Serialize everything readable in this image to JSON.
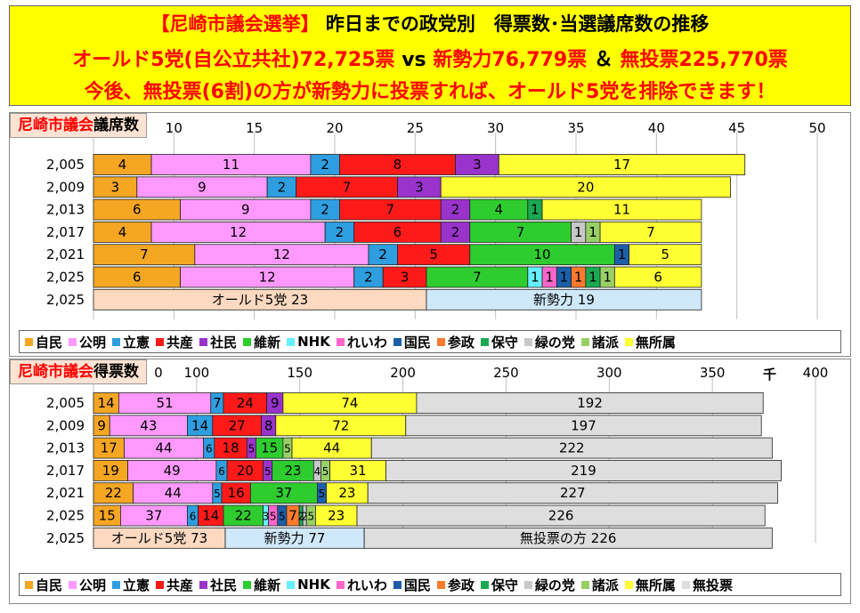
{
  "header": {
    "line1_prefix": "【尼崎市議会選挙】",
    "line1_rest": "昨日までの政党別　得票数･当選議席数の推移",
    "line2_a": "オールド5党(自公立共社)72,725票",
    "line2_vs": " vs ",
    "line2_b": "新勢力76,779票",
    "line2_and": " ＆ ",
    "line2_c": "無投票225,770票",
    "line3": "今後、無投票(6割)の方が新勢力に投票すれば、オールド5党を排除できます！"
  },
  "colors": {
    "自民": "#f5a623",
    "公明": "#ff99ff",
    "立憲": "#2e9ee0",
    "共産": "#ff1a1a",
    "社民": "#9933cc",
    "維新": "#2ecc2e",
    "NHK": "#66f0ff",
    "れいわ": "#ff66cc",
    "国民": "#1c5fa8",
    "参政": "#ff7a2e",
    "保守": "#1aa852",
    "緑の党": "#c8c8c8",
    "諸派": "#99d066",
    "無所属": "#ffff33",
    "無投票": "#dedede",
    "old5": "#fcd9c0",
    "new": "#cfe8fa"
  },
  "chart_data": [
    {
      "type": "bar",
      "orientation": "horizontal",
      "stacked": true,
      "title_red": "尼崎市議会",
      "title_black": "議席数",
      "xlim": [
        0,
        50
      ],
      "x_ticks": [
        "",
        "10",
        "15",
        "20",
        "25",
        "30",
        "35",
        "40",
        "45",
        "50"
      ],
      "categories": [
        "2,005",
        "2,009",
        "2,013",
        "2,017",
        "2,021",
        "2,025",
        "2,025"
      ],
      "rows": [
        [
          [
            "自民",
            4
          ],
          [
            "公明",
            11
          ],
          [
            "立憲",
            2
          ],
          [
            "共産",
            8
          ],
          [
            "社民",
            3
          ],
          [
            "無所属",
            17
          ]
        ],
        [
          [
            "自民",
            3
          ],
          [
            "公明",
            9
          ],
          [
            "立憲",
            2
          ],
          [
            "共産",
            7
          ],
          [
            "社民",
            3
          ],
          [
            "無所属",
            20
          ]
        ],
        [
          [
            "自民",
            6
          ],
          [
            "公明",
            9
          ],
          [
            "立憲",
            2
          ],
          [
            "共産",
            7
          ],
          [
            "社民",
            2
          ],
          [
            "維新",
            4
          ],
          [
            "保守",
            1
          ],
          [
            "無所属",
            11
          ]
        ],
        [
          [
            "自民",
            4
          ],
          [
            "公明",
            12
          ],
          [
            "立憲",
            2
          ],
          [
            "共産",
            6
          ],
          [
            "社民",
            2
          ],
          [
            "維新",
            7
          ],
          [
            "緑の党",
            1
          ],
          [
            "諸派",
            1
          ],
          [
            "無所属",
            7
          ]
        ],
        [
          [
            "自民",
            7
          ],
          [
            "公明",
            12
          ],
          [
            "立憲",
            2
          ],
          [
            "共産",
            5
          ],
          [
            "維新",
            10
          ],
          [
            "国民",
            1
          ],
          [
            "無所属",
            5
          ]
        ],
        [
          [
            "自民",
            6
          ],
          [
            "公明",
            12
          ],
          [
            "立憲",
            2
          ],
          [
            "共産",
            3
          ],
          [
            "維新",
            7
          ],
          [
            "NHK",
            1
          ],
          [
            "れいわ",
            1
          ],
          [
            "国民",
            1
          ],
          [
            "参政",
            1
          ],
          [
            "保守",
            1
          ],
          [
            "諸派",
            1
          ],
          [
            "無所属",
            6
          ]
        ],
        [
          [
            "old5",
            23,
            "オールド5党",
            "23"
          ],
          [
            "new",
            19,
            "新勢力",
            "19"
          ]
        ]
      ],
      "legend": [
        "自民",
        "公明",
        "立憲",
        "共産",
        "社民",
        "維新",
        "NHK",
        "れいわ",
        "国民",
        "参政",
        "保守",
        "緑の党",
        "諸派",
        "無所属"
      ]
    },
    {
      "type": "bar",
      "orientation": "horizontal",
      "stacked": true,
      "title_red": "尼崎市議会",
      "title_black": "得票数",
      "unit": "千",
      "xlim": [
        0,
        400
      ],
      "x_ticks": [
        "",
        "100",
        "150",
        "200",
        "250",
        "300",
        "350",
        "400"
      ],
      "x_partial_tick": "0",
      "categories": [
        "2,005",
        "2,009",
        "2,013",
        "2,017",
        "2,021",
        "2,025",
        "2,025"
      ],
      "rows": [
        [
          [
            "自民",
            14
          ],
          [
            "公明",
            51
          ],
          [
            "立憲",
            7
          ],
          [
            "共産",
            24
          ],
          [
            "社民",
            9
          ],
          [
            "無所属",
            74
          ],
          [
            "無投票",
            192
          ]
        ],
        [
          [
            "自民",
            9
          ],
          [
            "公明",
            43
          ],
          [
            "立憲",
            14
          ],
          [
            "共産",
            27
          ],
          [
            "社民",
            8
          ],
          [
            "無所属",
            72
          ],
          [
            "無投票",
            197
          ]
        ],
        [
          [
            "自民",
            17
          ],
          [
            "公明",
            44
          ],
          [
            "立憲",
            6
          ],
          [
            "共産",
            18
          ],
          [
            "社民",
            5
          ],
          [
            "維新",
            15
          ],
          [
            "諸派",
            5
          ],
          [
            "無所属",
            44
          ],
          [
            "無投票",
            222
          ]
        ],
        [
          [
            "自民",
            19
          ],
          [
            "公明",
            49
          ],
          [
            "立憲",
            6
          ],
          [
            "共産",
            20
          ],
          [
            "社民",
            5
          ],
          [
            "維新",
            23
          ],
          [
            "緑の党",
            4
          ],
          [
            "諸派",
            5
          ],
          [
            "無所属",
            31
          ],
          [
            "無投票",
            219
          ]
        ],
        [
          [
            "自民",
            22
          ],
          [
            "公明",
            44
          ],
          [
            "立憲",
            5
          ],
          [
            "共産",
            16
          ],
          [
            "維新",
            37
          ],
          [
            "国民",
            5
          ],
          [
            "無所属",
            23
          ],
          [
            "無投票",
            227
          ]
        ],
        [
          [
            "自民",
            15
          ],
          [
            "公明",
            37
          ],
          [
            "立憲",
            6
          ],
          [
            "共産",
            14
          ],
          [
            "維新",
            22
          ],
          [
            "NHK",
            3
          ],
          [
            "れいわ",
            5
          ],
          [
            "国民",
            5
          ],
          [
            "参政",
            7
          ],
          [
            "保守",
            2
          ],
          [
            "緑の党",
            2
          ],
          [
            "諸派",
            5
          ],
          [
            "無所属",
            23
          ],
          [
            "無投票",
            226
          ]
        ],
        [
          [
            "old5",
            73,
            "オールド5党",
            "73"
          ],
          [
            "new",
            77,
            "新勢力",
            "77"
          ],
          [
            "無投票",
            226,
            "無投票の方",
            "226"
          ]
        ]
      ],
      "legend": [
        "自民",
        "公明",
        "立憲",
        "共産",
        "社民",
        "維新",
        "NHK",
        "れいわ",
        "国民",
        "参政",
        "保守",
        "緑の党",
        "諸派",
        "無所属",
        "無投票"
      ]
    }
  ]
}
